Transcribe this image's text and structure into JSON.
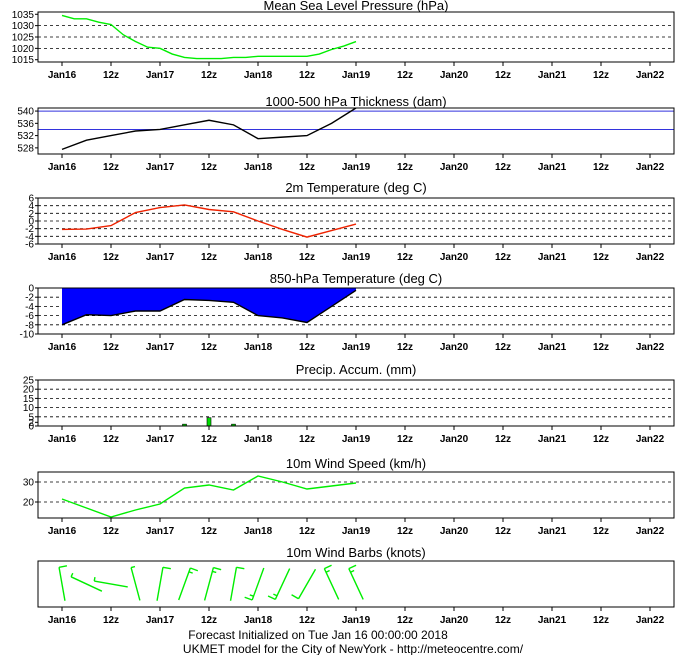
{
  "x_labels": [
    "Jan16",
    "12z",
    "Jan17",
    "12z",
    "Jan18",
    "12z",
    "Jan19",
    "12z",
    "Jan20",
    "12z",
    "Jan21",
    "12z",
    "Jan22"
  ],
  "footer": {
    "line1": "Forecast Initialized on Tue Jan 16 00:00:00 2018",
    "line2": "UKMET model for the City of NewYork - http://meteocentre.com/"
  },
  "chart_data": [
    {
      "id": "mslp",
      "type": "line",
      "title": "Mean Sea Level Pressure (hPa)",
      "ylim": [
        1014,
        1036
      ],
      "yticks": [
        1015,
        1020,
        1025,
        1030,
        1035
      ],
      "grid": [
        1020,
        1025,
        1030
      ],
      "color": "#00ee00",
      "x": [
        0,
        3,
        6,
        9,
        12,
        15,
        18,
        21,
        24,
        27,
        30,
        33,
        36,
        39,
        42,
        45,
        48,
        51,
        54,
        57,
        60,
        63,
        66,
        69,
        72
      ],
      "values": [
        1034.5,
        1033,
        1033,
        1031.5,
        1030.5,
        1026,
        1023,
        1020.5,
        1020,
        1017.5,
        1016,
        1015.5,
        1015.5,
        1015.5,
        1016,
        1016,
        1016.5,
        1016.5,
        1016.5,
        1016.5,
        1016.5,
        1017.5,
        1019.5,
        1021,
        1023
      ]
    },
    {
      "id": "thickness",
      "type": "line",
      "title": "1000-500 hPa Thickness (dam)",
      "ylim": [
        526,
        541
      ],
      "yticks": [
        528,
        532,
        536,
        540
      ],
      "grid": [],
      "ref_lines": [
        534,
        540
      ],
      "ref_color": "#3333dd",
      "color": "#000000",
      "x": [
        0,
        6,
        12,
        18,
        24,
        30,
        36,
        42,
        48,
        54,
        60,
        66,
        72
      ],
      "values": [
        527.5,
        530.5,
        532,
        533.5,
        534,
        535.5,
        537,
        535.5,
        531,
        531.5,
        532,
        536,
        541
      ]
    },
    {
      "id": "t2m",
      "type": "line",
      "title": "2m Temperature (deg C)",
      "ylim": [
        -6,
        6
      ],
      "yticks": [
        -6,
        -4,
        -2,
        0,
        2,
        4,
        6
      ],
      "grid": [
        -4,
        -2,
        0,
        2,
        4
      ],
      "color": "#ee2200",
      "x": [
        0,
        6,
        12,
        18,
        24,
        30,
        36,
        42,
        48,
        54,
        60,
        66,
        72
      ],
      "values": [
        -2.2,
        -2.1,
        -1.2,
        2.2,
        3.5,
        4.2,
        3,
        2.4,
        0,
        -2.2,
        -4.2,
        -2.5,
        -0.8
      ]
    },
    {
      "id": "t850",
      "type": "area",
      "title": "850-hPa Temperature (deg C)",
      "ylim": [
        -10,
        0
      ],
      "yticks": [
        0,
        -2,
        -4,
        -6,
        -8,
        -10
      ],
      "grid": [
        -2,
        -4,
        -6,
        -8
      ],
      "color": "#000000",
      "fill": "#0000ff",
      "x": [
        0,
        6,
        12,
        18,
        24,
        30,
        36,
        42,
        48,
        54,
        60,
        66,
        72
      ],
      "values": [
        -8,
        -5.8,
        -6,
        -5,
        -5,
        -2.5,
        -2.7,
        -3.1,
        -6,
        -6.5,
        -7.5,
        -4,
        -0.5
      ]
    },
    {
      "id": "precip",
      "type": "bar",
      "title": "Precip. Accum. (mm)",
      "ylim": [
        0,
        25
      ],
      "yticks": [
        0,
        2,
        5,
        10,
        15,
        20,
        25
      ],
      "grid": [
        5,
        10,
        15,
        20
      ],
      "color": "#00dd00",
      "x": [
        30,
        36,
        42
      ],
      "values": [
        1,
        4.5,
        1
      ]
    },
    {
      "id": "wind",
      "type": "line",
      "title": "10m Wind Speed (km/h)",
      "ylim": [
        12,
        35
      ],
      "yticks": [
        20,
        30
      ],
      "grid": [
        20,
        30
      ],
      "color": "#00ee00",
      "x": [
        0,
        6,
        12,
        18,
        24,
        30,
        36,
        42,
        48,
        54,
        60,
        66,
        72
      ],
      "values": [
        21.5,
        17,
        12.5,
        16,
        19,
        27,
        28.5,
        26,
        33,
        30,
        26.5,
        28,
        29.5
      ]
    },
    {
      "id": "barbs",
      "type": "barbs",
      "title": "10m Wind Barbs  (knots)",
      "color": "#00ee00",
      "x": [
        0,
        6,
        12,
        18,
        24,
        30,
        36,
        42,
        48,
        54,
        60,
        66,
        72
      ],
      "direction_deg": [
        350,
        295,
        280,
        345,
        10,
        20,
        15,
        10,
        200,
        205,
        210,
        335,
        335
      ],
      "speed_kt": [
        12,
        9,
        7,
        9,
        10,
        15,
        15,
        14,
        18,
        16,
        14,
        15,
        16
      ]
    }
  ]
}
